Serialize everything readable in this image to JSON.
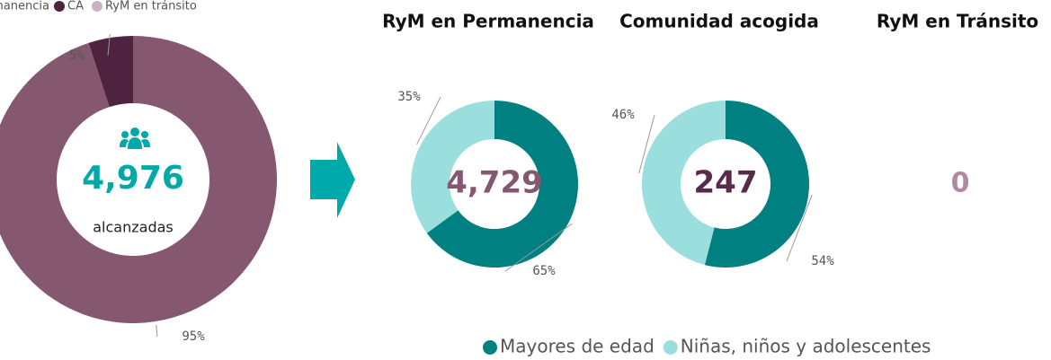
{
  "chart_data": [
    {
      "type": "donut",
      "categories": [
        "RyM en Permanencia",
        "CA",
        "RyM en tránsito"
      ],
      "values": [
        95,
        5,
        0
      ],
      "value_labels": [
        "95%",
        "5%",
        null
      ],
      "colors": [
        "#85586f",
        "#4d2340",
        "#c9b2c3"
      ],
      "center_text": "4,976",
      "center_subtitle": "alcanzadas",
      "center_color": "#00a8a8"
    },
    {
      "type": "donut",
      "title": "RyM en Permanencia",
      "categories": [
        "Mayores de edad",
        "Niñas, niños y adolescentes"
      ],
      "values": [
        65,
        35
      ],
      "value_labels": [
        "65%",
        "35%"
      ],
      "colors": [
        "#008080",
        "#9adede"
      ],
      "center_text": "4,729",
      "center_color": "#85586f"
    },
    {
      "type": "donut",
      "title": "Comunidad acogida",
      "values": [
        54,
        46
      ],
      "value_labels": [
        "54%",
        "46%"
      ],
      "colors": [
        "#008080",
        "#9adede"
      ],
      "center_text": "247",
      "center_color": "#5a2a4a"
    },
    {
      "type": "card",
      "title": "RyM en Tránsito",
      "value": 0,
      "color": "#b08aa3"
    }
  ]
}
